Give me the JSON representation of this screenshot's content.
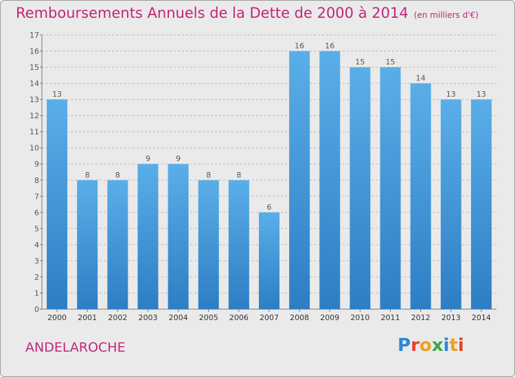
{
  "title": "Remboursements Annuels de la Dette de 2000 à 2014",
  "unit_label": "(en milliers d'€)",
  "commune": "ANDELAROCHE",
  "brand": {
    "name": "Proxiti",
    "colors": [
      "#2e86d6",
      "#e8402f",
      "#f0a020",
      "#3aa845",
      "#2e86d6",
      "#f0a020",
      "#e8402f"
    ]
  },
  "colors": {
    "accent": "#c2257a",
    "bar_top": "#5aaee8",
    "bar_bottom": "#2d7ec4",
    "grid": "#b9b9b9",
    "plot_bg": "#eaeaea"
  },
  "chart_data": {
    "type": "bar",
    "title": "Remboursements Annuels de la Dette de 2000 à 2014",
    "xlabel": "",
    "ylabel": "",
    "categories": [
      "2000",
      "2001",
      "2002",
      "2003",
      "2004",
      "2005",
      "2006",
      "2007",
      "2008",
      "2009",
      "2010",
      "2011",
      "2012",
      "2013",
      "2014"
    ],
    "values": [
      13,
      8,
      8,
      9,
      9,
      8,
      8,
      6,
      16,
      16,
      15,
      15,
      14,
      13,
      13
    ],
    "data_labels": [
      "13",
      "8",
      "8",
      "9",
      "9",
      "8",
      "8",
      "6",
      "16",
      "16",
      "15",
      "15",
      "14",
      "13",
      "13"
    ],
    "ylim": [
      0,
      17
    ],
    "yticks": [
      0,
      1,
      2,
      3,
      4,
      5,
      6,
      7,
      8,
      9,
      10,
      11,
      12,
      13,
      14,
      15,
      16,
      17
    ],
    "grid": "horizontal dashed"
  }
}
